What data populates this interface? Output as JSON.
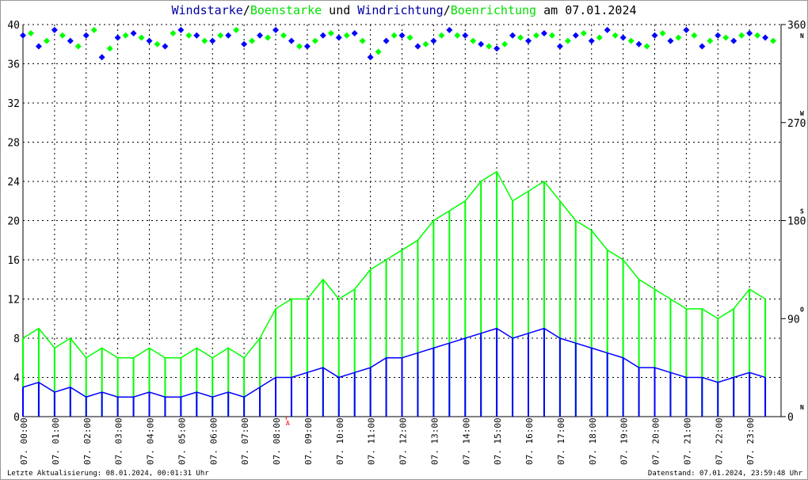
{
  "title": {
    "part1": "Windstarke",
    "sep1": "/",
    "part2": "Boenstarke",
    "part3": " und ",
    "part4": "Windrichtung",
    "sep2": "/",
    "part5": "Boenrichtung",
    "part6": " am 07.01.2024"
  },
  "footer": {
    "left": "Letzte Aktualisierung: 08.01.2024, 00:01:31 Uhr",
    "right": "Datenstand: 07.01.2024, 23:59:48 Uhr"
  },
  "colors": {
    "wind": "#0000ff",
    "gust": "#00ff00",
    "title_wind": "#0000a0",
    "marker": "#ff0000"
  },
  "chart_data": {
    "type": "line",
    "title": "Windstarke/Boenstarke und Windrichtung/Boenrichtung am 07.01.2024",
    "ylim": [
      0,
      40
    ],
    "yticks": [
      0,
      4,
      8,
      12,
      16,
      20,
      24,
      28,
      32,
      36,
      40
    ],
    "y2lim": [
      0,
      360
    ],
    "y2ticks": [
      0,
      90,
      180,
      270,
      360
    ],
    "y2tick_letters": [
      "N",
      "O",
      "S",
      "W",
      "N"
    ],
    "xlim": [
      "00:00",
      "24:00"
    ],
    "xtick_labels": [
      "07. 00:00",
      "07. 01:00",
      "07. 02:00",
      "07. 03:00",
      "07. 04:00",
      "07. 05:00",
      "07. 06:00",
      "07. 07:00",
      "07. 08:00",
      "07. 09:00",
      "07. 10:00",
      "07. 11:00",
      "07. 12:00",
      "07. 13:00",
      "07. 14:00",
      "07. 15:00",
      "07. 16:00",
      "07. 17:00",
      "07. 18:00",
      "07. 19:00",
      "07. 20:00",
      "07. 21:00",
      "07. 22:00",
      "07. 23:00"
    ],
    "grid": true,
    "marker_label": {
      "text": "A",
      "time": "08:20"
    },
    "x_hours": [
      0,
      0.5,
      1,
      1.5,
      2,
      2.5,
      3,
      3.5,
      4,
      4.5,
      5,
      5.5,
      6,
      6.5,
      7,
      7.5,
      8,
      8.5,
      9,
      9.5,
      10,
      10.5,
      11,
      11.5,
      12,
      12.5,
      13,
      13.5,
      14,
      14.5,
      15,
      15.5,
      16,
      16.5,
      17,
      17.5,
      18,
      18.5,
      19,
      19.5,
      20,
      20.5,
      21,
      21.5,
      22,
      22.5,
      23,
      23.5
    ],
    "series": [
      {
        "name": "Windstarke",
        "axis": "left",
        "style": "line",
        "values": [
          3,
          3.5,
          2.5,
          3,
          2,
          2.5,
          2,
          2,
          2.5,
          2,
          2,
          2.5,
          2,
          2.5,
          2,
          3,
          4,
          4,
          4.5,
          5,
          4,
          4.5,
          5,
          6,
          6,
          6.5,
          7,
          7.5,
          8,
          8.5,
          9,
          8,
          8.5,
          9,
          8,
          7.5,
          7,
          6.5,
          6,
          5,
          5,
          4.5,
          4,
          4,
          3.5,
          4,
          4.5,
          4
        ]
      },
      {
        "name": "Boenstarke",
        "axis": "left",
        "style": "line",
        "values": [
          8,
          9,
          7,
          8,
          6,
          7,
          6,
          6,
          7,
          6,
          6,
          7,
          6,
          7,
          6,
          8,
          11,
          12,
          12,
          14,
          12,
          13,
          15,
          16,
          17,
          18,
          20,
          21,
          22,
          24,
          25,
          22,
          23,
          24,
          22,
          20,
          19,
          17,
          16,
          14,
          13,
          12,
          11,
          11,
          10,
          11,
          13,
          12
        ]
      },
      {
        "name": "Windrichtung",
        "axis": "right",
        "style": "points",
        "values": [
          350,
          340,
          355,
          345,
          350,
          330,
          348,
          352,
          345,
          340,
          355,
          350,
          345,
          350,
          342,
          350,
          355,
          345,
          340,
          350,
          348,
          352,
          330,
          345,
          350,
          340,
          345,
          355,
          350,
          342,
          338,
          350,
          345,
          352,
          340,
          350,
          345,
          355,
          348,
          342,
          350,
          345,
          355,
          340,
          350,
          345,
          352,
          348
        ]
      },
      {
        "name": "Boenrichtung",
        "axis": "right",
        "style": "points",
        "values": [
          352,
          345,
          350,
          340,
          355,
          338,
          350,
          348,
          342,
          352,
          350,
          345,
          350,
          355,
          345,
          348,
          350,
          340,
          345,
          352,
          350,
          345,
          335,
          350,
          348,
          342,
          350,
          350,
          345,
          340,
          342,
          348,
          350,
          350,
          345,
          352,
          348,
          350,
          345,
          340,
          352,
          348,
          350,
          345,
          348,
          350,
          350,
          345
        ]
      }
    ]
  }
}
